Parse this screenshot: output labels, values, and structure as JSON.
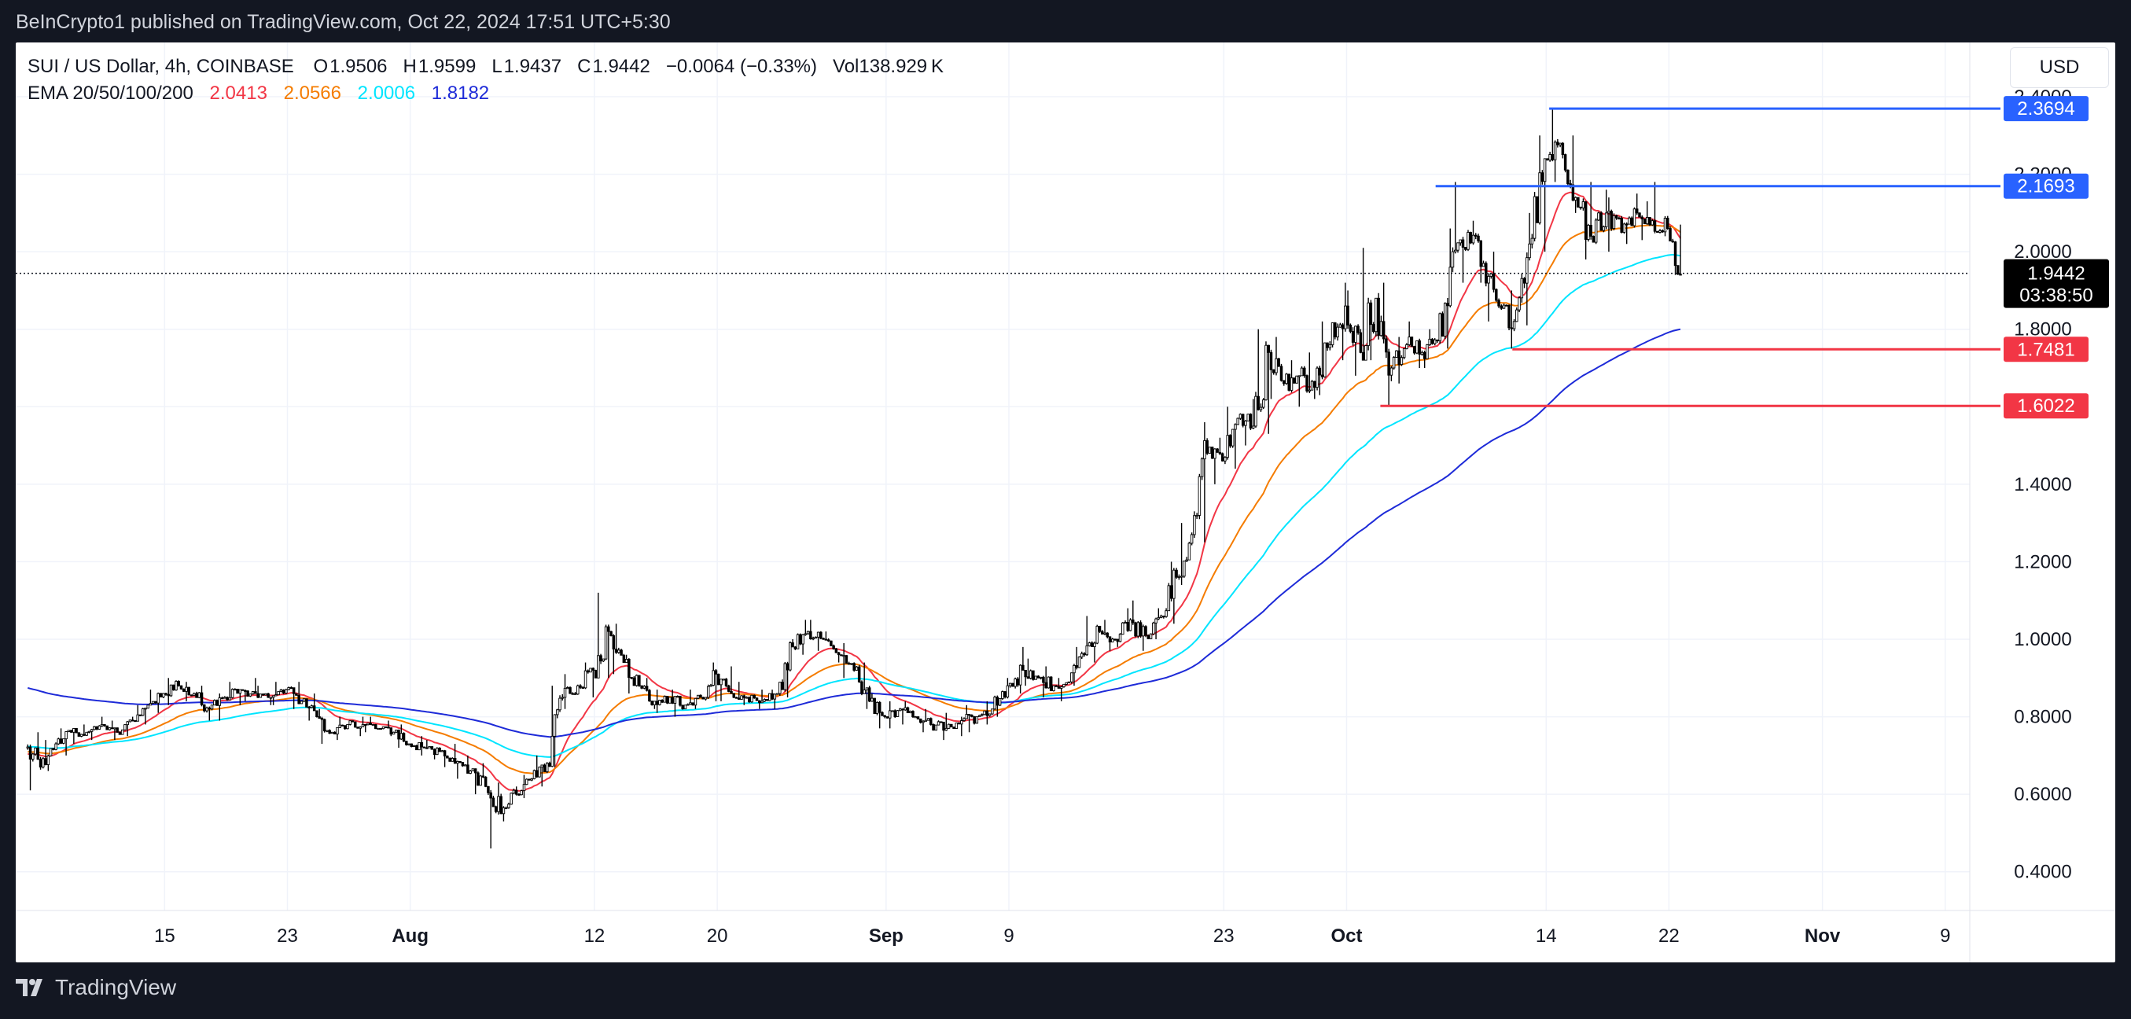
{
  "caption": "BeInCrypto1 published on TradingView.com, Oct 22, 2024 17:51 UTC+5:30",
  "footer": {
    "brand": "TradingView",
    "logo_icon": "tradingview-logo-icon"
  },
  "currency_button": "USD",
  "legend": {
    "symbol": "SUI / US Dollar, 4h, COINBASE",
    "o_label": "O",
    "o_value": "1.9506",
    "h_label": "H",
    "h_value": "1.9599",
    "l_label": "L",
    "l_value": "1.9437",
    "c_label": "C",
    "c_value": "1.9442",
    "change": "−0.0064 (−0.33%)",
    "vol_label": "Vol",
    "vol_value": "138.929 K",
    "ema_label": "EMA 20/50/100/200",
    "ema_values": [
      {
        "value": "2.0413",
        "color": "#f23645"
      },
      {
        "value": "2.0566",
        "color": "#f57c00"
      },
      {
        "value": "2.0006",
        "color": "#00e5ff"
      },
      {
        "value": "1.8182",
        "color": "#1e2bd8"
      }
    ]
  },
  "chart_data": {
    "type": "candlestick",
    "symbol": "SUI / US Dollar",
    "timeframe": "4h",
    "exchange": "COINBASE",
    "x_range": [
      "Jul 6, 2024",
      "Nov 10, 2024"
    ],
    "x_tick_labels": [
      {
        "label": "15",
        "day": 15,
        "bold": false
      },
      {
        "label": "23",
        "day": 23,
        "bold": false
      },
      {
        "label": "Aug",
        "day": 31,
        "bold": true
      },
      {
        "label": "12",
        "day": 43,
        "bold": false
      },
      {
        "label": "20",
        "day": 51,
        "bold": false
      },
      {
        "label": "Sep",
        "day": 62,
        "bold": true
      },
      {
        "label": "9",
        "day": 70,
        "bold": false
      },
      {
        "label": "23",
        "day": 84,
        "bold": false
      },
      {
        "label": "Oct",
        "day": 92,
        "bold": true
      },
      {
        "label": "14",
        "day": 105,
        "bold": false
      },
      {
        "label": "22",
        "day": 113,
        "bold": false
      },
      {
        "label": "Nov",
        "day": 123,
        "bold": true
      },
      {
        "label": "9",
        "day": 131,
        "bold": false
      }
    ],
    "x_units": "days since Jul 1, 2024",
    "ylim": [
      0.3,
      2.54
    ],
    "y_ticks": [
      "0.4000",
      "0.6000",
      "0.8000",
      "1.0000",
      "1.2000",
      "1.4000",
      "1.6000",
      "1.8000",
      "2.0000",
      "2.2000",
      "2.4000"
    ],
    "ohlc_daily": [
      [
        6,
        0.72,
        0.76,
        0.61,
        0.67
      ],
      [
        7,
        0.67,
        0.74,
        0.66,
        0.73
      ],
      [
        8,
        0.73,
        0.77,
        0.7,
        0.76
      ],
      [
        9,
        0.76,
        0.78,
        0.73,
        0.76
      ],
      [
        10,
        0.76,
        0.8,
        0.74,
        0.78
      ],
      [
        11,
        0.78,
        0.79,
        0.74,
        0.76
      ],
      [
        12,
        0.76,
        0.8,
        0.75,
        0.79
      ],
      [
        13,
        0.79,
        0.83,
        0.78,
        0.83
      ],
      [
        14,
        0.83,
        0.87,
        0.81,
        0.86
      ],
      [
        15,
        0.86,
        0.9,
        0.83,
        0.88
      ],
      [
        16,
        0.88,
        0.89,
        0.84,
        0.86
      ],
      [
        17,
        0.86,
        0.88,
        0.79,
        0.82
      ],
      [
        18,
        0.82,
        0.86,
        0.79,
        0.85
      ],
      [
        19,
        0.85,
        0.89,
        0.83,
        0.87
      ],
      [
        20,
        0.87,
        0.9,
        0.84,
        0.86
      ],
      [
        21,
        0.86,
        0.88,
        0.83,
        0.85
      ],
      [
        22,
        0.85,
        0.89,
        0.83,
        0.87
      ],
      [
        23,
        0.87,
        0.89,
        0.82,
        0.84
      ],
      [
        24,
        0.84,
        0.86,
        0.79,
        0.8
      ],
      [
        25,
        0.8,
        0.82,
        0.73,
        0.76
      ],
      [
        26,
        0.76,
        0.8,
        0.74,
        0.78
      ],
      [
        27,
        0.78,
        0.8,
        0.75,
        0.78
      ],
      [
        28,
        0.78,
        0.8,
        0.76,
        0.77
      ],
      [
        29,
        0.77,
        0.79,
        0.75,
        0.76
      ],
      [
        30,
        0.76,
        0.78,
        0.72,
        0.73
      ],
      [
        31,
        0.73,
        0.75,
        0.7,
        0.72
      ],
      [
        32,
        0.72,
        0.74,
        0.69,
        0.71
      ],
      [
        33,
        0.71,
        0.73,
        0.67,
        0.68
      ],
      [
        34,
        0.68,
        0.7,
        0.64,
        0.66
      ],
      [
        35,
        0.66,
        0.68,
        0.6,
        0.62
      ],
      [
        36,
        0.62,
        0.63,
        0.46,
        0.55
      ],
      [
        37,
        0.55,
        0.62,
        0.53,
        0.6
      ],
      [
        38,
        0.6,
        0.65,
        0.59,
        0.64
      ],
      [
        39,
        0.64,
        0.7,
        0.62,
        0.68
      ],
      [
        40,
        0.68,
        0.88,
        0.67,
        0.85
      ],
      [
        41,
        0.85,
        0.91,
        0.82,
        0.88
      ],
      [
        42,
        0.88,
        0.94,
        0.85,
        0.92
      ],
      [
        43,
        0.92,
        1.12,
        0.9,
        1.02
      ],
      [
        44,
        1.02,
        1.04,
        0.91,
        0.94
      ],
      [
        45,
        0.94,
        0.96,
        0.86,
        0.88
      ],
      [
        46,
        0.88,
        0.9,
        0.82,
        0.84
      ],
      [
        47,
        0.84,
        0.87,
        0.81,
        0.85
      ],
      [
        48,
        0.85,
        0.87,
        0.8,
        0.83
      ],
      [
        49,
        0.83,
        0.87,
        0.82,
        0.85
      ],
      [
        50,
        0.85,
        0.94,
        0.84,
        0.91
      ],
      [
        51,
        0.91,
        0.93,
        0.84,
        0.86
      ],
      [
        52,
        0.86,
        0.89,
        0.83,
        0.85
      ],
      [
        53,
        0.85,
        0.87,
        0.82,
        0.84
      ],
      [
        54,
        0.84,
        0.87,
        0.82,
        0.86
      ],
      [
        55,
        0.86,
        1.0,
        0.85,
        0.98
      ],
      [
        56,
        0.98,
        1.05,
        0.96,
        1.02
      ],
      [
        57,
        1.02,
        1.05,
        0.97,
        1.0
      ],
      [
        58,
        1.0,
        1.02,
        0.94,
        0.96
      ],
      [
        59,
        0.96,
        0.99,
        0.9,
        0.92
      ],
      [
        60,
        0.92,
        0.94,
        0.82,
        0.84
      ],
      [
        61,
        0.84,
        0.86,
        0.77,
        0.8
      ],
      [
        62,
        0.8,
        0.84,
        0.77,
        0.82
      ],
      [
        63,
        0.82,
        0.84,
        0.78,
        0.8
      ],
      [
        64,
        0.8,
        0.82,
        0.76,
        0.78
      ],
      [
        65,
        0.78,
        0.81,
        0.74,
        0.77
      ],
      [
        66,
        0.77,
        0.8,
        0.75,
        0.79
      ],
      [
        67,
        0.79,
        0.83,
        0.76,
        0.8
      ],
      [
        68,
        0.8,
        0.84,
        0.78,
        0.82
      ],
      [
        69,
        0.82,
        0.9,
        0.8,
        0.88
      ],
      [
        70,
        0.88,
        0.98,
        0.86,
        0.92
      ],
      [
        71,
        0.92,
        0.95,
        0.88,
        0.9
      ],
      [
        72,
        0.9,
        0.93,
        0.85,
        0.88
      ],
      [
        73,
        0.88,
        0.9,
        0.84,
        0.89
      ],
      [
        74,
        0.89,
        0.98,
        0.88,
        0.96
      ],
      [
        75,
        0.96,
        1.06,
        0.94,
        1.02
      ],
      [
        76,
        1.02,
        1.05,
        0.97,
        1.0
      ],
      [
        77,
        1.0,
        1.08,
        0.98,
        1.05
      ],
      [
        78,
        1.05,
        1.1,
        0.97,
        1.01
      ],
      [
        79,
        1.01,
        1.08,
        1.0,
        1.06
      ],
      [
        80,
        1.06,
        1.2,
        1.04,
        1.16
      ],
      [
        81,
        1.16,
        1.3,
        1.14,
        1.27
      ],
      [
        82,
        1.27,
        1.56,
        1.25,
        1.48
      ],
      [
        83,
        1.48,
        1.52,
        1.4,
        1.46
      ],
      [
        84,
        1.46,
        1.6,
        1.44,
        1.57
      ],
      [
        85,
        1.57,
        1.62,
        1.5,
        1.55
      ],
      [
        86,
        1.55,
        1.8,
        1.53,
        1.74
      ],
      [
        87,
        1.74,
        1.78,
        1.62,
        1.66
      ],
      [
        88,
        1.66,
        1.72,
        1.6,
        1.68
      ],
      [
        89,
        1.68,
        1.74,
        1.62,
        1.65
      ],
      [
        90,
        1.65,
        1.82,
        1.63,
        1.76
      ],
      [
        91,
        1.76,
        1.92,
        1.72,
        1.86
      ],
      [
        92,
        1.86,
        1.9,
        1.68,
        1.74
      ],
      [
        93,
        1.74,
        2.01,
        1.72,
        1.88
      ],
      [
        94,
        1.88,
        1.92,
        1.6,
        1.7
      ],
      [
        95,
        1.7,
        1.78,
        1.66,
        1.76
      ],
      [
        96,
        1.76,
        1.82,
        1.7,
        1.74
      ],
      [
        97,
        1.74,
        1.8,
        1.7,
        1.77
      ],
      [
        98,
        1.77,
        2.06,
        1.75,
        2.0
      ],
      [
        99,
        2.0,
        2.18,
        1.92,
        2.05
      ],
      [
        100,
        2.05,
        2.08,
        1.92,
        1.97
      ],
      [
        101,
        1.97,
        2.0,
        1.82,
        1.86
      ],
      [
        102,
        1.86,
        1.9,
        1.75,
        1.82
      ],
      [
        103,
        1.82,
        2.1,
        1.81,
        2.02
      ],
      [
        104,
        2.02,
        2.3,
        2.0,
        2.24
      ],
      [
        105,
        2.24,
        2.37,
        2.18,
        2.28
      ],
      [
        106,
        2.28,
        2.3,
        2.1,
        2.14
      ],
      [
        107,
        2.14,
        2.18,
        1.98,
        2.04
      ],
      [
        108,
        2.04,
        2.16,
        2.02,
        2.1
      ],
      [
        109,
        2.1,
        2.14,
        2.0,
        2.05
      ],
      [
        110,
        2.05,
        2.15,
        2.02,
        2.1
      ],
      [
        111,
        2.1,
        2.13,
        2.03,
        2.08
      ],
      [
        112,
        2.08,
        2.18,
        2.04,
        2.06
      ],
      [
        113,
        2.06,
        2.07,
        1.94,
        1.94
      ]
    ],
    "ema_series": [
      {
        "name": "EMA 20",
        "color": "#f23645",
        "last": 2.0413
      },
      {
        "name": "EMA 50",
        "color": "#f57c00",
        "last": 2.0566
      },
      {
        "name": "EMA 100",
        "color": "#00e5ff",
        "last": 2.0006
      },
      {
        "name": "EMA 200",
        "color": "#1e2bd8",
        "last": 1.8182
      }
    ],
    "ema200_initial": 0.876,
    "horizontal_levels": [
      {
        "label": "2.3694",
        "value": 2.3694,
        "from_day": 105.2,
        "color": "#2962ff"
      },
      {
        "label": "2.1693",
        "value": 2.1693,
        "from_day": 97.8,
        "color": "#2962ff"
      },
      {
        "label": "1.7481",
        "value": 1.7481,
        "from_day": 102.8,
        "color": "#f23645"
      },
      {
        "label": "1.6022",
        "value": 1.6022,
        "from_day": 94.2,
        "color": "#f23645"
      }
    ],
    "current_price": {
      "label": "1.9442",
      "value": 1.9442,
      "countdown": "03:38:50"
    }
  }
}
